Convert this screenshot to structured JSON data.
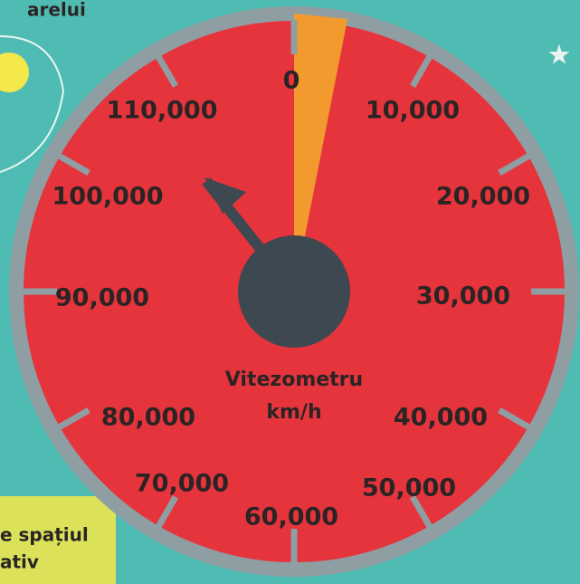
{
  "caption_top": "arelui",
  "dial": {
    "labels": [
      "0",
      "10,000",
      "20,000",
      "30,000",
      "40,000",
      "50,000",
      "60,000",
      "70,000",
      "80,000",
      "90,000",
      "100,000",
      "110,000"
    ],
    "name": "Vitezometru",
    "unit": "km/h"
  },
  "note_box": {
    "lines": [
      "e spațiul",
      "ativ"
    ]
  }
}
